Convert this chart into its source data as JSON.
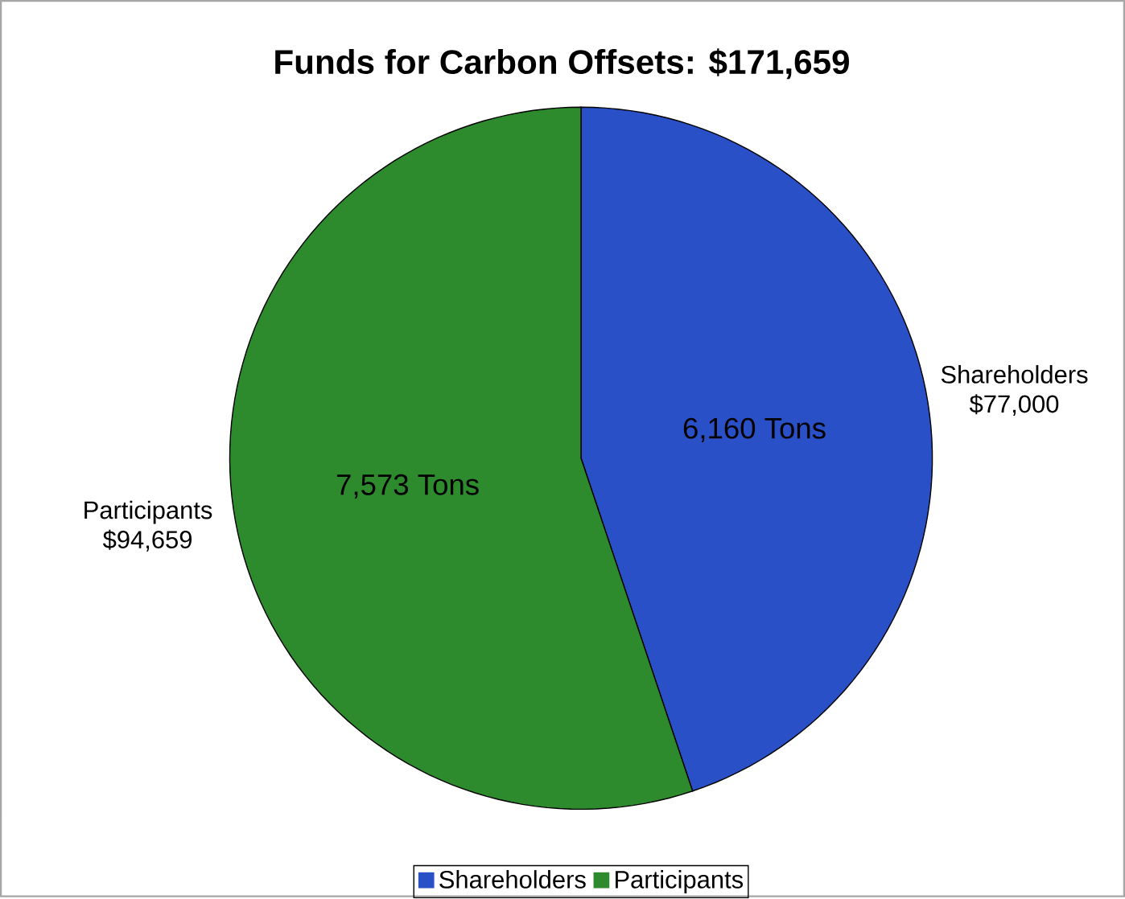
{
  "chart_data": {
    "type": "pie",
    "title": "Funds for Carbon Offsets: $171,659",
    "categories": [
      "Shareholders",
      "Participants"
    ],
    "values": [
      77000,
      94659
    ],
    "colors": [
      "#2a50c8",
      "#2d8a2d"
    ],
    "value_labels": [
      "$77,000",
      "$94,659"
    ],
    "annotations": [
      "6,160 Tons",
      "7,573 Tons"
    ],
    "legend": "bottom"
  }
}
